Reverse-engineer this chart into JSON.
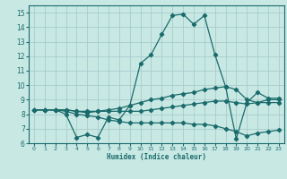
{
  "title": "",
  "xlabel": "Humidex (Indice chaleur)",
  "xlim": [
    -0.5,
    23.5
  ],
  "ylim": [
    6,
    15.5
  ],
  "yticks": [
    6,
    7,
    8,
    9,
    10,
    11,
    12,
    13,
    14,
    15
  ],
  "xticks": [
    0,
    1,
    2,
    3,
    4,
    5,
    6,
    7,
    8,
    9,
    10,
    11,
    12,
    13,
    14,
    15,
    16,
    17,
    18,
    19,
    20,
    21,
    22,
    23
  ],
  "bg_color": "#c8e8e4",
  "grid_color": "#a8cccc",
  "line_color": "#1a6b6b",
  "lines": [
    {
      "x": [
        0,
        1,
        2,
        3,
        4,
        5,
        6,
        7,
        8,
        9,
        10,
        11,
        12,
        13,
        14,
        15,
        16,
        17,
        18,
        19,
        20,
        21,
        22,
        23
      ],
      "y": [
        8.3,
        8.3,
        8.3,
        8.0,
        6.4,
        6.6,
        6.4,
        7.8,
        7.6,
        8.6,
        11.5,
        12.1,
        13.5,
        14.8,
        14.9,
        14.2,
        14.8,
        12.1,
        9.9,
        6.3,
        8.8,
        9.5,
        9.1,
        9.1
      ]
    },
    {
      "x": [
        0,
        1,
        2,
        3,
        4,
        5,
        6,
        7,
        8,
        9,
        10,
        11,
        12,
        13,
        14,
        15,
        16,
        17,
        18,
        19,
        20,
        21,
        22,
        23
      ],
      "y": [
        8.3,
        8.3,
        8.3,
        8.3,
        8.2,
        8.1,
        8.2,
        8.3,
        8.4,
        8.6,
        8.8,
        9.0,
        9.1,
        9.3,
        9.4,
        9.5,
        9.7,
        9.8,
        9.9,
        9.7,
        9.0,
        8.8,
        9.0,
        9.0
      ]
    },
    {
      "x": [
        0,
        1,
        2,
        3,
        4,
        5,
        6,
        7,
        8,
        9,
        10,
        11,
        12,
        13,
        14,
        15,
        16,
        17,
        18,
        19,
        20,
        21,
        22,
        23
      ],
      "y": [
        8.3,
        8.3,
        8.3,
        8.3,
        8.2,
        8.2,
        8.2,
        8.2,
        8.2,
        8.2,
        8.2,
        8.3,
        8.4,
        8.5,
        8.6,
        8.7,
        8.8,
        8.9,
        8.9,
        8.8,
        8.7,
        8.8,
        8.8,
        8.8
      ]
    },
    {
      "x": [
        0,
        1,
        2,
        3,
        4,
        5,
        6,
        7,
        8,
        9,
        10,
        11,
        12,
        13,
        14,
        15,
        16,
        17,
        18,
        19,
        20,
        21,
        22,
        23
      ],
      "y": [
        8.3,
        8.3,
        8.3,
        8.2,
        8.0,
        7.9,
        7.8,
        7.6,
        7.5,
        7.4,
        7.4,
        7.4,
        7.4,
        7.4,
        7.4,
        7.3,
        7.3,
        7.2,
        7.0,
        6.8,
        6.5,
        6.7,
        6.8,
        6.9
      ]
    }
  ]
}
